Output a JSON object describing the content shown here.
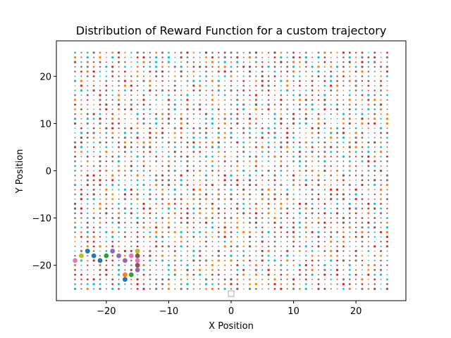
{
  "chart_data": {
    "type": "scatter",
    "title": "Distribution of Reward Function for a custom trajectory",
    "xlabel": "X Position",
    "ylabel": "Y Position",
    "xlim": [
      -28,
      28
    ],
    "ylim": [
      -27.5,
      27.5
    ],
    "xticks": [
      -20,
      -10,
      0,
      10,
      20
    ],
    "yticks": [
      -20,
      -10,
      0,
      10,
      20
    ],
    "xtick_labels": [
      "−20",
      "−10",
      "0",
      "10",
      "20"
    ],
    "ytick_labels": [
      "−20",
      "−10",
      "0",
      "10",
      "20"
    ],
    "grid": false,
    "legend": "lower center (empty)",
    "background_grid": {
      "x_range": [
        -25,
        25
      ],
      "y_range": [
        -25,
        25
      ],
      "step": 1,
      "marker_size": "small"
    },
    "palette": [
      "#1f77b4",
      "#ff7f0e",
      "#2ca02c",
      "#d62728",
      "#9467bd",
      "#8c564b",
      "#e377c2",
      "#7f7f7f",
      "#bcbd22",
      "#17becf"
    ],
    "trajectory_points": [
      {
        "x": -25,
        "y": -19,
        "color": "#e377c2"
      },
      {
        "x": -24,
        "y": -18,
        "color": "#bcbd22"
      },
      {
        "x": -23,
        "y": -17,
        "color": "#1f77b4"
      },
      {
        "x": -22,
        "y": -18,
        "color": "#1f77b4"
      },
      {
        "x": -21,
        "y": -19,
        "color": "#1f77b4"
      },
      {
        "x": -20,
        "y": -18,
        "color": "#2ca02c"
      },
      {
        "x": -19,
        "y": -17,
        "color": "#9467bd"
      },
      {
        "x": -18,
        "y": -18,
        "color": "#9467bd"
      },
      {
        "x": -17,
        "y": -19,
        "color": "#9467bd"
      },
      {
        "x": -16,
        "y": -18,
        "color": "#e377c2"
      },
      {
        "x": -15,
        "y": -17,
        "color": "#bcbd22"
      },
      {
        "x": -15,
        "y": -18,
        "color": "#8c564b"
      },
      {
        "x": -15,
        "y": -19,
        "color": "#e377c2"
      },
      {
        "x": -15,
        "y": -20,
        "color": "#8c564b"
      },
      {
        "x": -15,
        "y": -21,
        "color": "#9467bd"
      },
      {
        "x": -16,
        "y": -22,
        "color": "#2ca02c"
      },
      {
        "x": -17,
        "y": -22,
        "color": "#ff7f0e"
      },
      {
        "x": -17,
        "y": -23,
        "color": "#1f77b4"
      }
    ]
  }
}
